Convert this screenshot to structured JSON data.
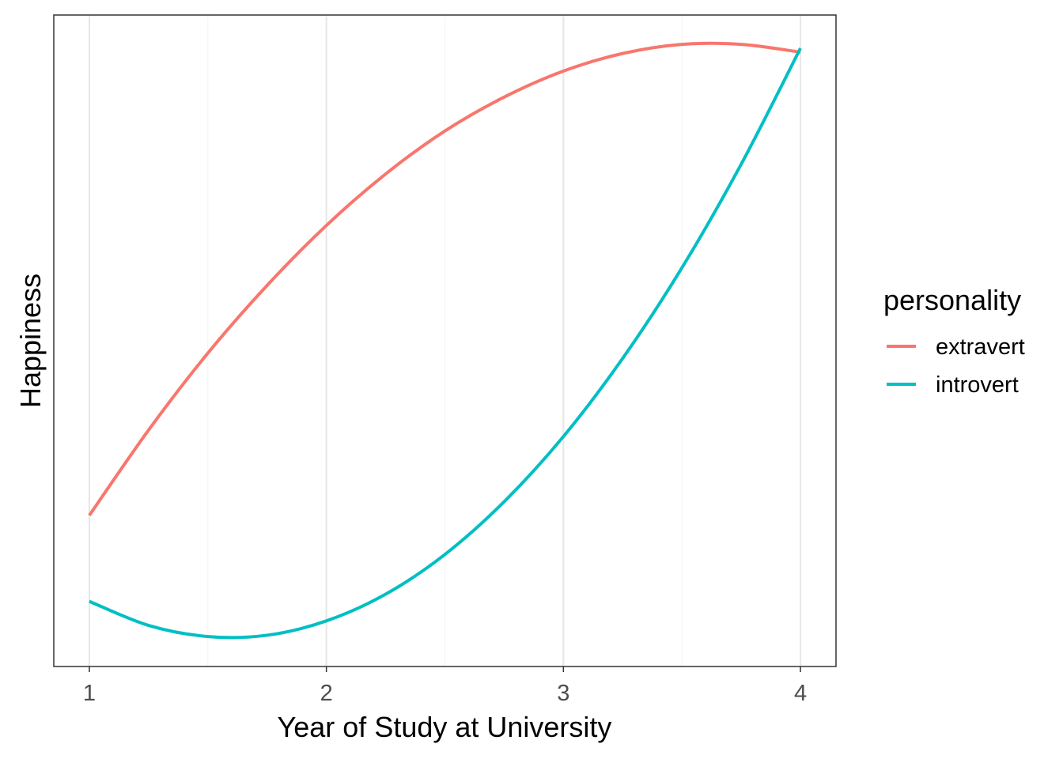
{
  "chart_data": {
    "type": "line",
    "title": "",
    "xlabel": "Year of Study at University",
    "ylabel": "Happiness",
    "xlim": [
      0.85,
      4.15
    ],
    "ylim": [
      0,
      100
    ],
    "x_ticks": [
      1,
      2,
      3,
      4
    ],
    "x_tick_labels": [
      "1",
      "2",
      "3",
      "4"
    ],
    "y_ticks": [],
    "grid": true,
    "legend": {
      "title": "personality",
      "placement": "right"
    },
    "x": [
      1,
      1.25,
      1.5,
      1.75,
      2,
      2.25,
      2.5,
      2.75,
      3,
      3.25,
      3.5,
      3.75,
      4
    ],
    "series": [
      {
        "name": "extravert",
        "color": "#F8766D",
        "values": [
          23.2,
          36.3,
          48.1,
          58.5,
          67.7,
          75.6,
          82.2,
          87.4,
          91.4,
          94.1,
          95.5,
          95.5,
          94.3
        ]
      },
      {
        "name": "introvert",
        "color": "#00BFC4",
        "values": [
          10.0,
          6.3,
          4.6,
          4.8,
          7.0,
          11.1,
          17.2,
          25.3,
          35.3,
          47.3,
          61.2,
          77.1,
          94.9
        ]
      }
    ]
  }
}
